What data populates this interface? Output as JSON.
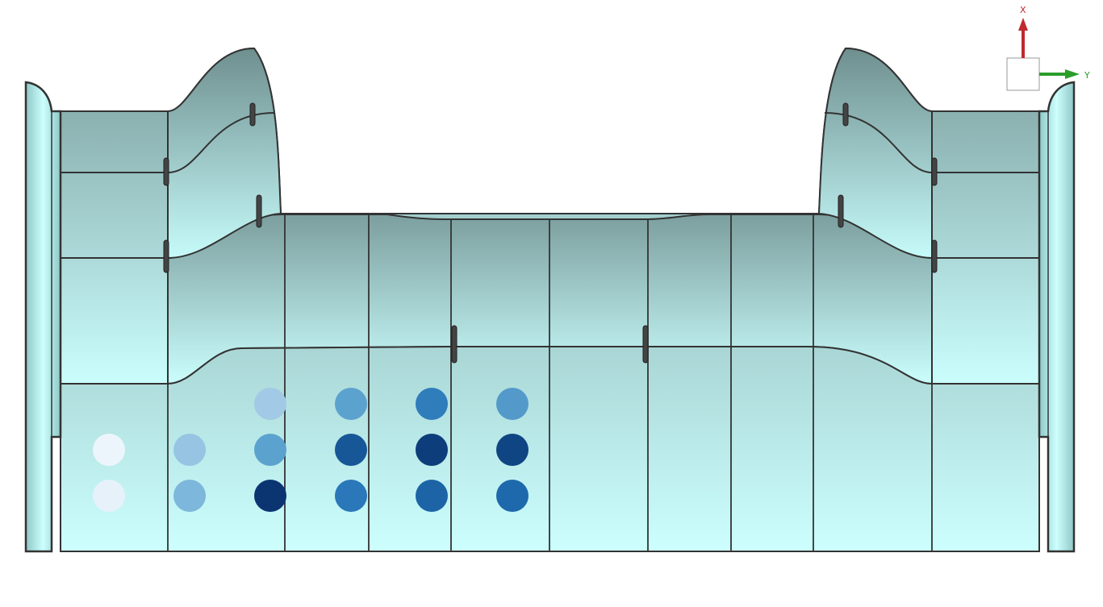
{
  "view": {
    "background": "#ffffff",
    "surface_top": "#7ea3a2",
    "surface_bottom": "#cbfffe",
    "edge_color": "#333333"
  },
  "triad": {
    "x_label": "X",
    "y_label": "Y",
    "x_color": "#c0292e",
    "y_color": "#2a9d2a"
  },
  "markers": {
    "columns": 6,
    "rows": 3,
    "colormap": "Blues",
    "intensity": [
      [
        null,
        null,
        0.35,
        0.55,
        0.7,
        0.58
      ],
      [
        0.05,
        0.38,
        0.55,
        0.85,
        0.95,
        0.92
      ],
      [
        0.08,
        0.45,
        0.98,
        0.72,
        0.8,
        0.78
      ]
    ]
  }
}
